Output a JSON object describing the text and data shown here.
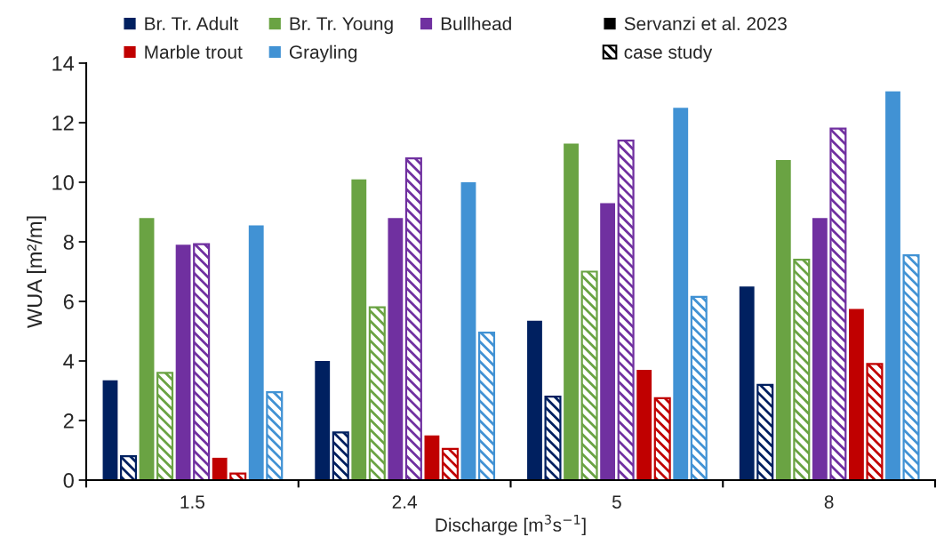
{
  "chart_data": {
    "type": "bar",
    "xlabel": "Discharge [m$^{3}$s$^{−1}$]",
    "ylabel": "WUA [m²/m]",
    "categories": [
      "1.5",
      "2.4",
      "5",
      "8"
    ],
    "series": [
      {
        "name": "Br. Tr. Adult",
        "color": "#002060",
        "values": [
          3.35,
          4.0,
          5.35,
          6.5
        ]
      },
      {
        "color": "#002060",
        "values": [
          0.8,
          1.6,
          2.8,
          3.2
        ]
      },
      {
        "name": "Br. Tr. Young",
        "color": "#6aa343",
        "values": [
          8.8,
          10.1,
          11.3,
          10.75
        ]
      },
      {
        "color": "#6aa343",
        "values": [
          3.6,
          5.8,
          7.0,
          7.4
        ]
      },
      {
        "name": "Bullhead",
        "color": "#7030a0",
        "values": [
          7.9,
          8.8,
          9.3,
          8.8
        ]
      },
      {
        "color": "#7030a0",
        "values": [
          7.92,
          10.8,
          11.4,
          11.8
        ]
      },
      {
        "name": "Marble trout",
        "color": "#c00000",
        "values": [
          0.75,
          1.5,
          3.7,
          5.75
        ]
      },
      {
        "color": "#c00000",
        "values": [
          0.22,
          1.05,
          2.75,
          3.9
        ]
      },
      {
        "name": "Grayling",
        "color": "#4192d4",
        "values": [
          8.55,
          10.0,
          12.5,
          13.05
        ]
      },
      {
        "color": "#4192d4",
        "values": [
          2.95,
          4.95,
          6.15,
          7.55
        ]
      }
    ],
    "annotations": [
      "Servanzi et al. 2023",
      "case study"
    ],
    "ylim": [
      0,
      14
    ],
    "yticks": [
      0,
      2,
      4,
      6,
      8,
      10,
      12,
      14
    ],
    "grid": false,
    "legend": "top"
  }
}
